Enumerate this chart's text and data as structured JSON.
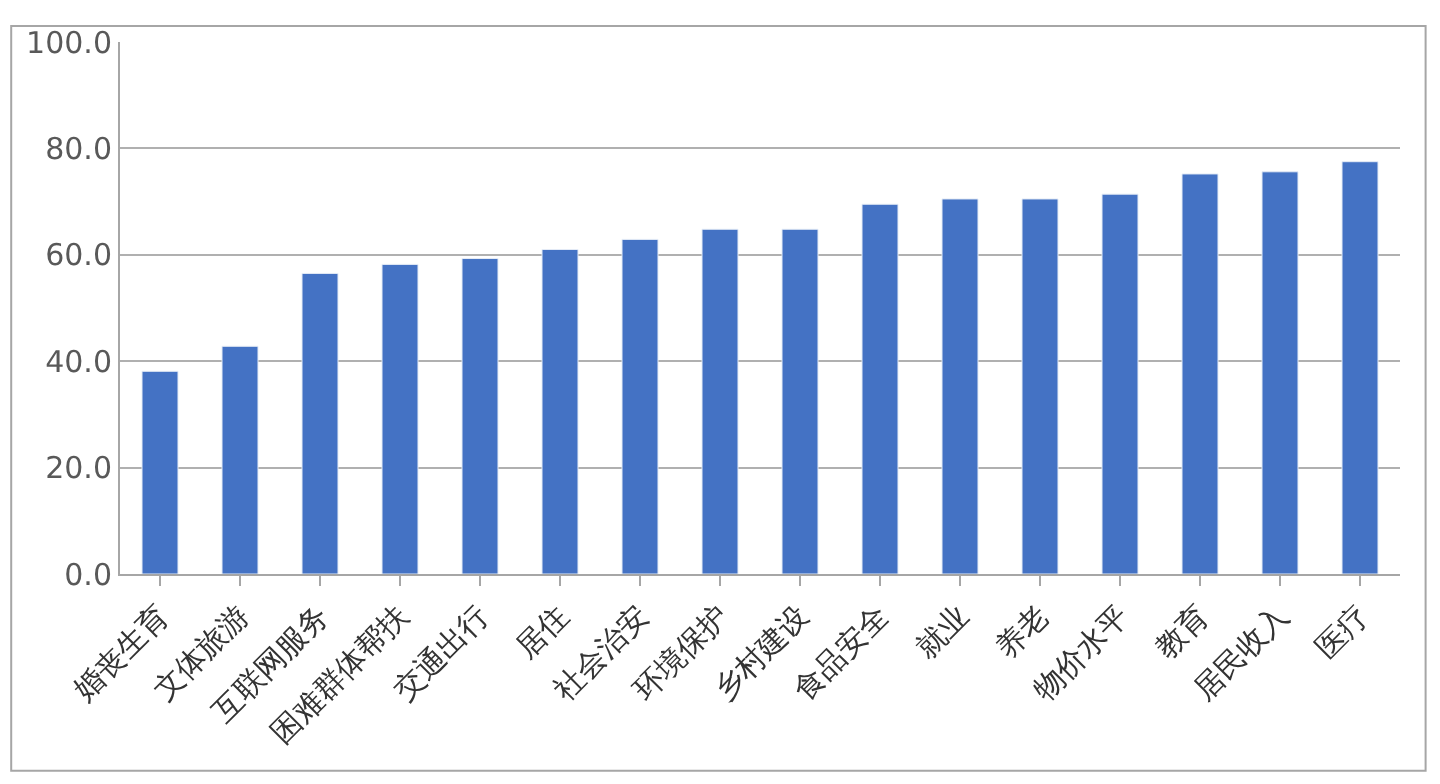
{
  "chart_data": {
    "type": "bar",
    "categories": [
      "婚丧生育",
      "文体旅游",
      "互联网服务",
      "困难群体帮扶",
      "交通出行",
      "居住",
      "社会治安",
      "环境保护",
      "乡村建设",
      "食品安全",
      "就业",
      "养老",
      "物价水平",
      "教育",
      "居民收入",
      "医疗"
    ],
    "values": [
      38.1,
      42.8,
      56.5,
      58.2,
      59.3,
      61.0,
      62.9,
      64.8,
      64.8,
      69.5,
      70.5,
      70.5,
      71.4,
      75.2,
      75.6,
      77.5
    ],
    "color": "#4472c4",
    "ylim": [
      0,
      100
    ],
    "yticks": [
      {
        "value": 0,
        "label": "0.0"
      },
      {
        "value": 20,
        "label": "20.0"
      },
      {
        "value": 40,
        "label": "40.0"
      },
      {
        "value": 60,
        "label": "60.0"
      },
      {
        "value": 80,
        "label": "80.0"
      },
      {
        "value": 100,
        "label": "100.0"
      }
    ],
    "grid": "y"
  }
}
